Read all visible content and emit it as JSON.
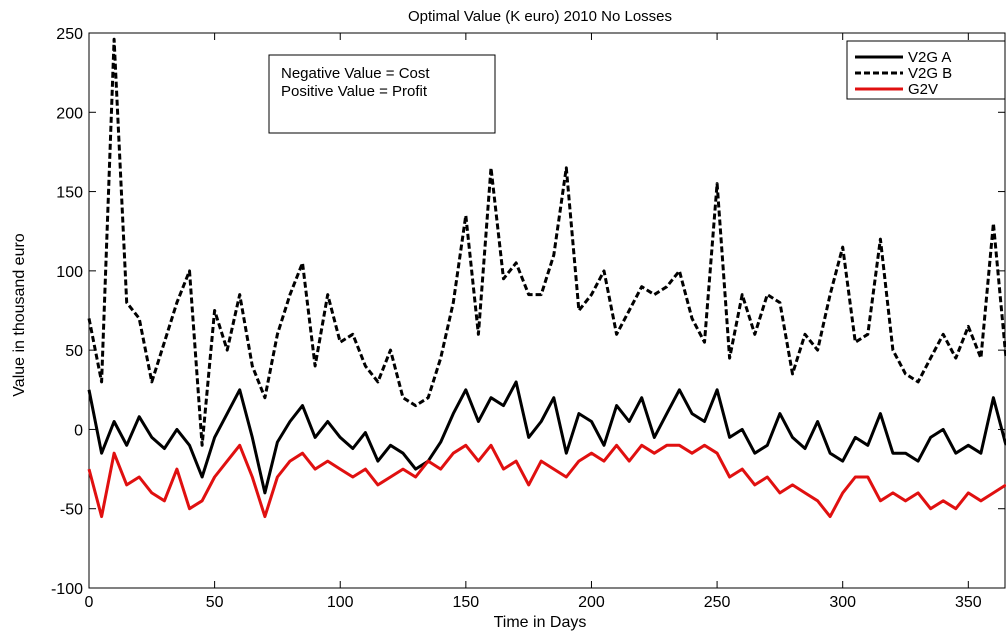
{
  "chart_data": {
    "type": "line",
    "title": "Optimal Value (K euro) 2010 No Losses",
    "xlabel": "Time in Days",
    "ylabel": "Value in thousand euro",
    "xlim": [
      0,
      365
    ],
    "ylim": [
      -100,
      250
    ],
    "xticks": [
      0,
      50,
      100,
      150,
      200,
      250,
      300,
      350
    ],
    "yticks": [
      -100,
      -50,
      0,
      50,
      100,
      150,
      200,
      250
    ],
    "grid": false,
    "legend_position": "top-right",
    "annotation": [
      "Negative Value = Cost",
      "Positive Value = Profit"
    ],
    "series": [
      {
        "name": "V2G A",
        "color": "#000000",
        "style": "solid",
        "x": [
          0,
          5,
          10,
          15,
          20,
          25,
          30,
          35,
          40,
          45,
          50,
          55,
          60,
          65,
          70,
          75,
          80,
          85,
          90,
          95,
          100,
          105,
          110,
          115,
          120,
          125,
          130,
          135,
          140,
          145,
          150,
          155,
          160,
          165,
          170,
          175,
          180,
          185,
          190,
          195,
          200,
          205,
          210,
          215,
          220,
          225,
          230,
          235,
          240,
          245,
          250,
          255,
          260,
          265,
          270,
          275,
          280,
          285,
          290,
          295,
          300,
          305,
          310,
          315,
          320,
          325,
          330,
          335,
          340,
          345,
          350,
          355,
          360,
          365
        ],
        "y": [
          25,
          -15,
          5,
          -10,
          8,
          -5,
          -12,
          0,
          -10,
          -30,
          -5,
          10,
          25,
          -5,
          -40,
          -8,
          5,
          15,
          -5,
          5,
          -5,
          -12,
          -2,
          -20,
          -10,
          -15,
          -25,
          -20,
          -8,
          10,
          25,
          5,
          20,
          15,
          30,
          -5,
          5,
          20,
          -15,
          10,
          5,
          -10,
          15,
          5,
          20,
          -5,
          10,
          25,
          10,
          5,
          25,
          -5,
          0,
          -15,
          -10,
          10,
          -5,
          -12,
          5,
          -15,
          -20,
          -5,
          -10,
          10,
          -15,
          -15,
          -20,
          -5,
          0,
          -15,
          -10,
          -15,
          20,
          -10
        ]
      },
      {
        "name": "V2G B",
        "color": "#000000",
        "style": "dashed",
        "x": [
          0,
          5,
          10,
          15,
          20,
          25,
          30,
          35,
          40,
          45,
          50,
          55,
          60,
          65,
          70,
          75,
          80,
          85,
          90,
          95,
          100,
          105,
          110,
          115,
          120,
          125,
          130,
          135,
          140,
          145,
          150,
          155,
          160,
          165,
          170,
          175,
          180,
          185,
          190,
          195,
          200,
          205,
          210,
          215,
          220,
          225,
          230,
          235,
          240,
          245,
          250,
          255,
          260,
          265,
          270,
          275,
          280,
          285,
          290,
          295,
          300,
          305,
          310,
          315,
          320,
          325,
          330,
          335,
          340,
          345,
          350,
          355,
          360,
          365
        ],
        "y": [
          70,
          30,
          246,
          80,
          70,
          30,
          55,
          80,
          100,
          -10,
          75,
          50,
          85,
          40,
          20,
          60,
          85,
          105,
          40,
          85,
          55,
          60,
          40,
          30,
          50,
          20,
          15,
          20,
          45,
          80,
          135,
          60,
          165,
          95,
          105,
          85,
          85,
          110,
          165,
          75,
          85,
          100,
          60,
          75,
          90,
          85,
          90,
          100,
          70,
          55,
          155,
          45,
          85,
          60,
          85,
          80,
          35,
          60,
          50,
          85,
          115,
          55,
          60,
          120,
          50,
          35,
          30,
          45,
          60,
          45,
          65,
          45,
          130,
          45
        ]
      },
      {
        "name": "G2V",
        "color": "#e01010",
        "style": "solid",
        "x": [
          0,
          5,
          10,
          15,
          20,
          25,
          30,
          35,
          40,
          45,
          50,
          55,
          60,
          65,
          70,
          75,
          80,
          85,
          90,
          95,
          100,
          105,
          110,
          115,
          120,
          125,
          130,
          135,
          140,
          145,
          150,
          155,
          160,
          165,
          170,
          175,
          180,
          185,
          190,
          195,
          200,
          205,
          210,
          215,
          220,
          225,
          230,
          235,
          240,
          245,
          250,
          255,
          260,
          265,
          270,
          275,
          280,
          285,
          290,
          295,
          300,
          305,
          310,
          315,
          320,
          325,
          330,
          335,
          340,
          345,
          350,
          355,
          360,
          365
        ],
        "y": [
          -25,
          -55,
          -15,
          -35,
          -30,
          -40,
          -45,
          -25,
          -50,
          -45,
          -30,
          -20,
          -10,
          -30,
          -55,
          -30,
          -20,
          -15,
          -25,
          -20,
          -25,
          -30,
          -25,
          -35,
          -30,
          -25,
          -30,
          -20,
          -25,
          -15,
          -10,
          -20,
          -10,
          -25,
          -20,
          -35,
          -20,
          -25,
          -30,
          -20,
          -15,
          -20,
          -10,
          -20,
          -10,
          -15,
          -10,
          -10,
          -15,
          -10,
          -15,
          -30,
          -25,
          -35,
          -30,
          -40,
          -35,
          -40,
          -45,
          -55,
          -40,
          -30,
          -30,
          -45,
          -40,
          -45,
          -40,
          -50,
          -45,
          -50,
          -40,
          -45,
          -40,
          -35
        ]
      }
    ]
  }
}
